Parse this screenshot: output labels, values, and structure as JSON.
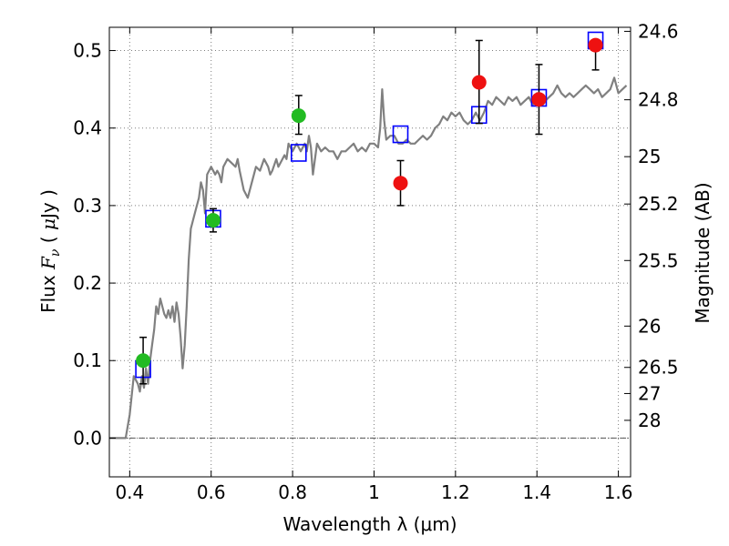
{
  "chart_data": {
    "type": "scatter",
    "xlabel": "Wavelength  λ (μm)",
    "ylabel_left": "Flux  F_ν  ( μJy )",
    "ylabel_right": "Magnitude (AB)",
    "xlim": [
      0.35,
      1.63
    ],
    "ylim": [
      -0.05,
      0.53
    ],
    "x_ticks": [
      0.4,
      0.6,
      0.8,
      1.0,
      1.2,
      1.4,
      1.6
    ],
    "x_tick_labels": [
      "0.4",
      "0.6",
      "0.8",
      "1",
      "1.2",
      "1.4",
      "1.6"
    ],
    "y_ticks": [
      0.0,
      0.1,
      0.2,
      0.3,
      0.4,
      0.5
    ],
    "y_tick_labels": [
      "0.0",
      "0.1",
      "0.2",
      "0.3",
      "0.4",
      "0.5"
    ],
    "right_ticks": [
      {
        "label": "24.6",
        "flux": 0.5248
      },
      {
        "label": "24.8",
        "flux": 0.4365
      },
      {
        "label": "25",
        "flux": 0.3631
      },
      {
        "label": "25.2",
        "flux": 0.302
      },
      {
        "label": "25.5",
        "flux": 0.2291
      },
      {
        "label": "26",
        "flux": 0.1445
      },
      {
        "label": "26.5",
        "flux": 0.0912
      },
      {
        "label": "27",
        "flux": 0.0575
      },
      {
        "label": "28",
        "flux": 0.0229
      }
    ],
    "grid": true,
    "zero_line": true,
    "colors": {
      "template": "#808080",
      "model_box": "#0000ff",
      "detection": "#22bb22",
      "nondetect": "#ee1111",
      "errorbar": "#000000",
      "grid": "#7f7f7f"
    },
    "template_spectrum": [
      [
        0.35,
        0.0
      ],
      [
        0.39,
        0.0
      ],
      [
        0.4,
        0.03
      ],
      [
        0.41,
        0.08
      ],
      [
        0.42,
        0.07
      ],
      [
        0.425,
        0.06
      ],
      [
        0.43,
        0.08
      ],
      [
        0.435,
        0.065
      ],
      [
        0.44,
        0.09
      ],
      [
        0.445,
        0.07
      ],
      [
        0.45,
        0.1
      ],
      [
        0.455,
        0.12
      ],
      [
        0.46,
        0.14
      ],
      [
        0.465,
        0.17
      ],
      [
        0.47,
        0.16
      ],
      [
        0.475,
        0.18
      ],
      [
        0.48,
        0.17
      ],
      [
        0.485,
        0.16
      ],
      [
        0.49,
        0.155
      ],
      [
        0.495,
        0.165
      ],
      [
        0.5,
        0.155
      ],
      [
        0.505,
        0.17
      ],
      [
        0.51,
        0.15
      ],
      [
        0.515,
        0.175
      ],
      [
        0.52,
        0.16
      ],
      [
        0.525,
        0.13
      ],
      [
        0.53,
        0.09
      ],
      [
        0.535,
        0.12
      ],
      [
        0.54,
        0.17
      ],
      [
        0.545,
        0.23
      ],
      [
        0.55,
        0.27
      ],
      [
        0.56,
        0.29
      ],
      [
        0.57,
        0.31
      ],
      [
        0.575,
        0.33
      ],
      [
        0.58,
        0.32
      ],
      [
        0.585,
        0.29
      ],
      [
        0.59,
        0.34
      ],
      [
        0.6,
        0.35
      ],
      [
        0.61,
        0.34
      ],
      [
        0.615,
        0.345
      ],
      [
        0.62,
        0.34
      ],
      [
        0.625,
        0.33
      ],
      [
        0.63,
        0.35
      ],
      [
        0.64,
        0.36
      ],
      [
        0.65,
        0.355
      ],
      [
        0.66,
        0.35
      ],
      [
        0.665,
        0.36
      ],
      [
        0.67,
        0.345
      ],
      [
        0.68,
        0.32
      ],
      [
        0.69,
        0.31
      ],
      [
        0.7,
        0.33
      ],
      [
        0.71,
        0.35
      ],
      [
        0.72,
        0.345
      ],
      [
        0.73,
        0.36
      ],
      [
        0.74,
        0.35
      ],
      [
        0.745,
        0.34
      ],
      [
        0.75,
        0.345
      ],
      [
        0.76,
        0.36
      ],
      [
        0.765,
        0.35
      ],
      [
        0.77,
        0.355
      ],
      [
        0.78,
        0.365
      ],
      [
        0.785,
        0.36
      ],
      [
        0.79,
        0.38
      ],
      [
        0.8,
        0.37
      ],
      [
        0.805,
        0.375
      ],
      [
        0.81,
        0.38
      ],
      [
        0.82,
        0.37
      ],
      [
        0.83,
        0.38
      ],
      [
        0.835,
        0.37
      ],
      [
        0.84,
        0.39
      ],
      [
        0.845,
        0.375
      ],
      [
        0.85,
        0.34
      ],
      [
        0.86,
        0.38
      ],
      [
        0.87,
        0.37
      ],
      [
        0.88,
        0.375
      ],
      [
        0.89,
        0.37
      ],
      [
        0.9,
        0.37
      ],
      [
        0.91,
        0.36
      ],
      [
        0.92,
        0.37
      ],
      [
        0.93,
        0.37
      ],
      [
        0.94,
        0.375
      ],
      [
        0.95,
        0.38
      ],
      [
        0.96,
        0.37
      ],
      [
        0.97,
        0.375
      ],
      [
        0.98,
        0.37
      ],
      [
        0.99,
        0.38
      ],
      [
        1.0,
        0.38
      ],
      [
        1.01,
        0.375
      ],
      [
        1.015,
        0.4
      ],
      [
        1.02,
        0.45
      ],
      [
        1.025,
        0.41
      ],
      [
        1.03,
        0.385
      ],
      [
        1.04,
        0.39
      ],
      [
        1.05,
        0.39
      ],
      [
        1.06,
        0.38
      ],
      [
        1.07,
        0.38
      ],
      [
        1.08,
        0.385
      ],
      [
        1.09,
        0.38
      ],
      [
        1.1,
        0.38
      ],
      [
        1.11,
        0.385
      ],
      [
        1.12,
        0.39
      ],
      [
        1.13,
        0.385
      ],
      [
        1.14,
        0.39
      ],
      [
        1.15,
        0.4
      ],
      [
        1.16,
        0.405
      ],
      [
        1.17,
        0.415
      ],
      [
        1.18,
        0.41
      ],
      [
        1.19,
        0.42
      ],
      [
        1.2,
        0.415
      ],
      [
        1.21,
        0.42
      ],
      [
        1.22,
        0.41
      ],
      [
        1.23,
        0.405
      ],
      [
        1.24,
        0.41
      ],
      [
        1.25,
        0.42
      ],
      [
        1.26,
        0.41
      ],
      [
        1.27,
        0.42
      ],
      [
        1.28,
        0.435
      ],
      [
        1.29,
        0.43
      ],
      [
        1.3,
        0.44
      ],
      [
        1.31,
        0.435
      ],
      [
        1.32,
        0.43
      ],
      [
        1.33,
        0.44
      ],
      [
        1.34,
        0.435
      ],
      [
        1.35,
        0.44
      ],
      [
        1.36,
        0.43
      ],
      [
        1.37,
        0.435
      ],
      [
        1.38,
        0.44
      ],
      [
        1.39,
        0.43
      ],
      [
        1.4,
        0.445
      ],
      [
        1.41,
        0.44
      ],
      [
        1.42,
        0.435
      ],
      [
        1.43,
        0.44
      ],
      [
        1.44,
        0.445
      ],
      [
        1.45,
        0.455
      ],
      [
        1.46,
        0.445
      ],
      [
        1.47,
        0.44
      ],
      [
        1.48,
        0.445
      ],
      [
        1.49,
        0.44
      ],
      [
        1.5,
        0.445
      ],
      [
        1.51,
        0.45
      ],
      [
        1.52,
        0.455
      ],
      [
        1.53,
        0.45
      ],
      [
        1.54,
        0.445
      ],
      [
        1.55,
        0.45
      ],
      [
        1.56,
        0.44
      ],
      [
        1.57,
        0.445
      ],
      [
        1.58,
        0.45
      ],
      [
        1.59,
        0.465
      ],
      [
        1.6,
        0.445
      ],
      [
        1.61,
        0.45
      ],
      [
        1.62,
        0.455
      ]
    ],
    "model_boxes": [
      {
        "x": 0.433,
        "y": 0.089
      },
      {
        "x": 0.605,
        "y": 0.283
      },
      {
        "x": 0.815,
        "y": 0.368
      },
      {
        "x": 1.065,
        "y": 0.392
      },
      {
        "x": 1.258,
        "y": 0.417
      },
      {
        "x": 1.405,
        "y": 0.439
      },
      {
        "x": 1.544,
        "y": 0.513
      }
    ],
    "points": [
      {
        "x": 0.433,
        "y": 0.1,
        "err_lo": 0.03,
        "err_hi": 0.03,
        "group": "detection"
      },
      {
        "x": 0.605,
        "y": 0.281,
        "err_lo": 0.015,
        "err_hi": 0.015,
        "group": "detection"
      },
      {
        "x": 0.815,
        "y": 0.416,
        "err_lo": 0.024,
        "err_hi": 0.026,
        "group": "detection"
      },
      {
        "x": 1.065,
        "y": 0.329,
        "err_lo": 0.029,
        "err_hi": 0.029,
        "group": "nondetect"
      },
      {
        "x": 1.258,
        "y": 0.459,
        "err_lo": 0.053,
        "err_hi": 0.054,
        "group": "nondetect"
      },
      {
        "x": 1.405,
        "y": 0.437,
        "err_lo": 0.045,
        "err_hi": 0.045,
        "group": "nondetect"
      },
      {
        "x": 1.544,
        "y": 0.507,
        "err_lo": 0.032,
        "err_hi": 0.0,
        "group": "nondetect"
      }
    ]
  }
}
